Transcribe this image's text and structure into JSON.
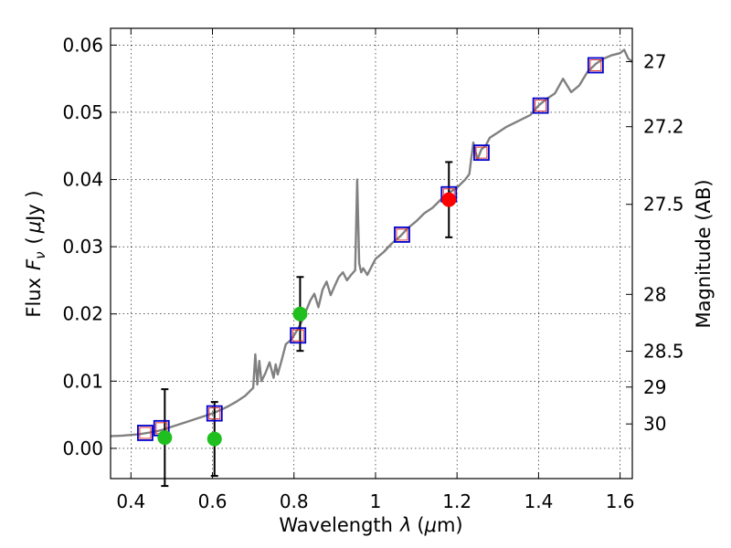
{
  "chart_data": {
    "type": "scatter",
    "xlabel": "Wavelength",
    "xlabel_symbol": "λ",
    "xlabel_unit_open": "(",
    "xlabel_unit_mu": "μ",
    "xlabel_unit_rest": "m)",
    "ylabel": "Flux",
    "ylabel_symbol": "F",
    "ylabel_subscript": "ν",
    "ylabel_unit_open": "(",
    "ylabel_unit_mu": "μ",
    "ylabel_unit_rest": "Jy )",
    "y2label": "Magnitude (AB)",
    "xlim": [
      0.35,
      1.63
    ],
    "ylim": [
      -0.0045,
      0.0625
    ],
    "grid": true,
    "x_ticks": [
      {
        "value": 0.4,
        "label": "0.4"
      },
      {
        "value": 0.6,
        "label": "0.6"
      },
      {
        "value": 0.8,
        "label": "0.8"
      },
      {
        "value": 1.0,
        "label": "1"
      },
      {
        "value": 1.2,
        "label": "1.2"
      },
      {
        "value": 1.4,
        "label": "1.4"
      },
      {
        "value": 1.6,
        "label": "1.6"
      }
    ],
    "y_ticks": [
      {
        "value": 0.0,
        "label": "0.00"
      },
      {
        "value": 0.01,
        "label": "0.01"
      },
      {
        "value": 0.02,
        "label": "0.02"
      },
      {
        "value": 0.03,
        "label": "0.03"
      },
      {
        "value": 0.04,
        "label": "0.04"
      },
      {
        "value": 0.05,
        "label": "0.05"
      },
      {
        "value": 0.06,
        "label": "0.06"
      }
    ],
    "mag_ticks": [
      {
        "mag": 27.0,
        "label": "27"
      },
      {
        "mag": 27.2,
        "label": "27.2"
      },
      {
        "mag": 27.5,
        "label": "27.5"
      },
      {
        "mag": 28.0,
        "label": "28"
      },
      {
        "mag": 28.5,
        "label": "28.5"
      },
      {
        "mag": 29.0,
        "label": "29"
      },
      {
        "mag": 30.0,
        "label": "30"
      }
    ],
    "colors": {
      "spectrum": "#808080",
      "model_square_outer": "#0000cc",
      "model_square_inner": "#e03030",
      "detection": "#ff0000",
      "nondetection": "#1fbf1f",
      "errorbar": "#000000"
    },
    "series": [
      {
        "name": "model-spectrum",
        "kind": "line",
        "x": [
          0.35,
          0.38,
          0.4,
          0.42,
          0.44,
          0.46,
          0.48,
          0.5,
          0.52,
          0.54,
          0.56,
          0.58,
          0.6,
          0.62,
          0.64,
          0.66,
          0.68,
          0.7,
          0.705,
          0.71,
          0.715,
          0.72,
          0.73,
          0.74,
          0.75,
          0.755,
          0.76,
          0.77,
          0.78,
          0.79,
          0.8,
          0.81,
          0.82,
          0.83,
          0.84,
          0.85,
          0.86,
          0.87,
          0.88,
          0.89,
          0.9,
          0.91,
          0.92,
          0.93,
          0.94,
          0.95,
          0.955,
          0.96,
          0.965,
          0.97,
          0.98,
          0.99,
          1.0,
          1.02,
          1.04,
          1.06,
          1.08,
          1.1,
          1.12,
          1.14,
          1.16,
          1.18,
          1.2,
          1.22,
          1.23,
          1.24,
          1.25,
          1.26,
          1.27,
          1.28,
          1.3,
          1.32,
          1.34,
          1.36,
          1.38,
          1.4,
          1.42,
          1.44,
          1.46,
          1.48,
          1.5,
          1.52,
          1.54,
          1.56,
          1.58,
          1.6,
          1.61,
          1.62,
          1.63
        ],
        "y": [
          0.0018,
          0.0019,
          0.002,
          0.0021,
          0.0023,
          0.0025,
          0.0028,
          0.0032,
          0.0036,
          0.004,
          0.0044,
          0.0048,
          0.0052,
          0.0057,
          0.0063,
          0.007,
          0.0078,
          0.009,
          0.014,
          0.0095,
          0.013,
          0.01,
          0.0112,
          0.0128,
          0.0105,
          0.0125,
          0.011,
          0.0132,
          0.0155,
          0.016,
          0.0168,
          0.0178,
          0.019,
          0.0205,
          0.022,
          0.023,
          0.021,
          0.0236,
          0.0248,
          0.0228,
          0.0242,
          0.0255,
          0.0262,
          0.025,
          0.0258,
          0.0265,
          0.04,
          0.0275,
          0.0262,
          0.0268,
          0.0258,
          0.027,
          0.0282,
          0.0292,
          0.0305,
          0.0315,
          0.0328,
          0.0338,
          0.035,
          0.0358,
          0.037,
          0.038,
          0.0388,
          0.04,
          0.0408,
          0.0455,
          0.043,
          0.0445,
          0.045,
          0.0462,
          0.047,
          0.0478,
          0.0484,
          0.049,
          0.0496,
          0.051,
          0.052,
          0.0528,
          0.055,
          0.053,
          0.054,
          0.056,
          0.0572,
          0.058,
          0.0585,
          0.0588,
          0.0593,
          0.058,
          0.0575
        ]
      },
      {
        "name": "model-photometry",
        "kind": "square",
        "x": [
          0.435,
          0.475,
          0.605,
          0.81,
          1.065,
          1.18,
          1.26,
          1.405,
          1.54
        ],
        "y": [
          0.0023,
          0.003,
          0.0052,
          0.0168,
          0.0318,
          0.0378,
          0.044,
          0.051,
          0.057
        ]
      },
      {
        "name": "non-detections",
        "kind": "circle",
        "x": [
          0.483,
          0.605,
          0.815
        ],
        "y": [
          0.0016,
          0.0014,
          0.02
        ],
        "yerr": [
          0.0072,
          0.0055,
          0.0055
        ]
      },
      {
        "name": "detections",
        "kind": "circle",
        "x": [
          1.18
        ],
        "y": [
          0.037
        ],
        "yerr": [
          0.0056
        ]
      }
    ]
  }
}
